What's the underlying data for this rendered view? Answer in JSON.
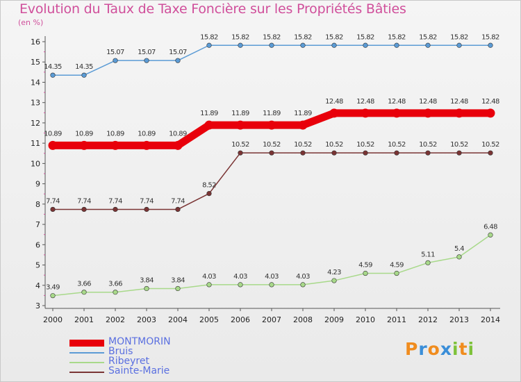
{
  "title": "Evolution du Taux de Taxe Foncière sur les Propriétés Bâties",
  "unit_label": "(en %)",
  "logo": {
    "letters": [
      "P",
      "r",
      "o",
      "x",
      "i",
      "t",
      "i"
    ],
    "colors": [
      "#f08c1e",
      "#3a8ed8",
      "#f08c1e",
      "#3a8ed8",
      "#7ec23a",
      "#f08c1e",
      "#7ec23a"
    ]
  },
  "chart_data": {
    "type": "line",
    "title": "Evolution du Taux de Taxe Foncière sur les Propriétés Bâties",
    "ylabel": "(en %)",
    "xlabel": "",
    "ylim": [
      3,
      16
    ],
    "yticks": [
      "3",
      "4",
      "5",
      "6",
      "7",
      "8",
      "9",
      "10",
      "11",
      "12",
      "13",
      "14",
      "15",
      "16"
    ],
    "x": [
      "2000",
      "2001",
      "2002",
      "2003",
      "2004",
      "2005",
      "2006",
      "2007",
      "2008",
      "2009",
      "2010",
      "2011",
      "2012",
      "2013",
      "2014"
    ],
    "series": [
      {
        "name": "MONTMORIN",
        "color": "#e8000b",
        "highlight": true,
        "values": [
          10.89,
          10.89,
          10.89,
          10.89,
          10.89,
          11.89,
          11.89,
          11.89,
          11.89,
          12.48,
          12.48,
          12.48,
          12.48,
          12.48,
          12.48
        ],
        "labels": [
          "10.89",
          "10.89",
          "10.89",
          "10.89",
          "10.89",
          "11.89",
          "11.89",
          "11.89",
          "11.89",
          "12.48",
          "12.48",
          "12.48",
          "12.48",
          "12.48",
          "12.48"
        ]
      },
      {
        "name": "Bruis",
        "color": "#5b9bd5",
        "highlight": false,
        "values": [
          14.35,
          14.35,
          15.07,
          15.07,
          15.07,
          15.82,
          15.82,
          15.82,
          15.82,
          15.82,
          15.82,
          15.82,
          15.82,
          15.82,
          15.82
        ],
        "labels": [
          "14.35",
          "14.35",
          "15.07",
          "15.07",
          "15.07",
          "15.82",
          "15.82",
          "15.82",
          "15.82",
          "15.82",
          "15.82",
          "15.82",
          "15.82",
          "15.82",
          "15.82"
        ]
      },
      {
        "name": "Ribeyret",
        "color": "#a8d98a",
        "highlight": false,
        "values": [
          3.49,
          3.66,
          3.66,
          3.84,
          3.84,
          4.03,
          4.03,
          4.03,
          4.03,
          4.23,
          4.59,
          4.59,
          5.11,
          5.4,
          6.48
        ],
        "labels": [
          "3.49",
          "3.66",
          "3.66",
          "3.84",
          "3.84",
          "4.03",
          "4.03",
          "4.03",
          "4.03",
          "4.23",
          "4.59",
          "4.59",
          "5.11",
          "5.4",
          "6.48"
        ]
      },
      {
        "name": "Sainte-Marie",
        "color": "#7a3434",
        "highlight": false,
        "values": [
          7.74,
          7.74,
          7.74,
          7.74,
          7.74,
          8.52,
          10.52,
          10.52,
          10.52,
          10.52,
          10.52,
          10.52,
          10.52,
          10.52,
          10.52
        ],
        "labels": [
          "7.74",
          "7.74",
          "7.74",
          "7.74",
          "7.74",
          "8.52",
          "10.52",
          "10.52",
          "10.52",
          "10.52",
          "10.52",
          "10.52",
          "10.52",
          "10.52",
          "10.52"
        ]
      }
    ],
    "grid": false,
    "legend": "bottom-left"
  }
}
